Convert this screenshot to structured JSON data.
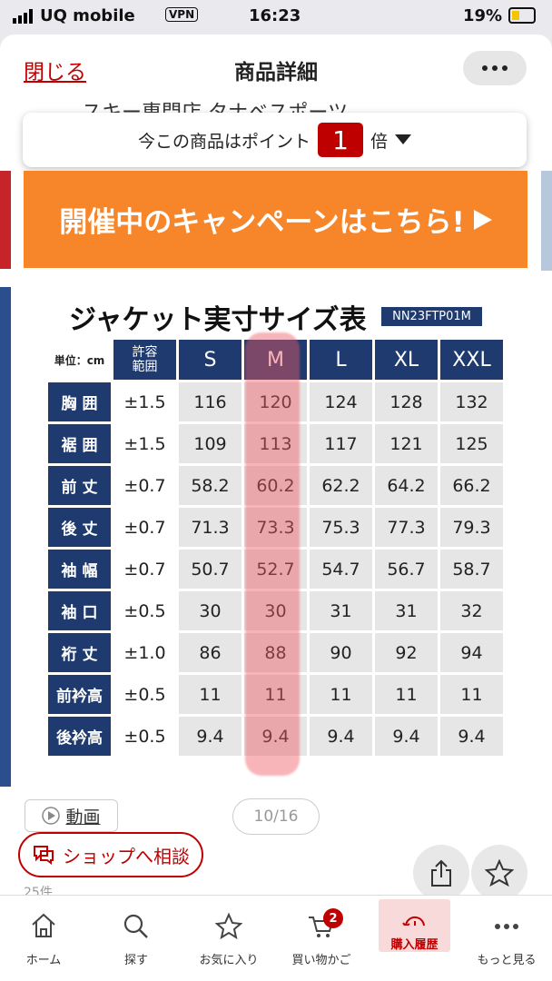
{
  "status_bar": {
    "carrier": "UQ mobile",
    "vpn": "VPN",
    "time": "16:23",
    "battery": "19%"
  },
  "header": {
    "close": "閉じる",
    "title": "商品詳細"
  },
  "shop_name": "スキー専門店 タナベスポーツ",
  "points": {
    "prefix": "今この商品はポイント",
    "value": "1",
    "suffix": "倍"
  },
  "banner": {
    "text": "開催中のキャンペーンはこちら!"
  },
  "size_chart": {
    "title": "ジャケット実寸サイズ表",
    "code": "NN23FTP01M",
    "unit": "単位：cm",
    "tolerance_header": [
      "許容",
      "範囲"
    ],
    "sizes": [
      "S",
      "M",
      "L",
      "XL",
      "XXL"
    ],
    "rows": [
      {
        "label": "胸 囲",
        "tolerance": "±1.5",
        "values": [
          "116",
          "120",
          "124",
          "128",
          "132"
        ]
      },
      {
        "label": "裾 囲",
        "tolerance": "±1.5",
        "values": [
          "109",
          "113",
          "117",
          "121",
          "125"
        ]
      },
      {
        "label": "前 丈",
        "tolerance": "±0.7",
        "values": [
          "58.2",
          "60.2",
          "62.2",
          "64.2",
          "66.2"
        ]
      },
      {
        "label": "後 丈",
        "tolerance": "±0.7",
        "values": [
          "71.3",
          "73.3",
          "75.3",
          "77.3",
          "79.3"
        ]
      },
      {
        "label": "袖 幅",
        "tolerance": "±0.7",
        "values": [
          "50.7",
          "52.7",
          "54.7",
          "56.7",
          "58.7"
        ]
      },
      {
        "label": "袖 口",
        "tolerance": "±0.5",
        "values": [
          "30",
          "30",
          "31",
          "31",
          "32"
        ]
      },
      {
        "label": "裄 丈",
        "tolerance": "±1.0",
        "values": [
          "86",
          "88",
          "90",
          "92",
          "94"
        ]
      },
      {
        "label": "前衿高",
        "tolerance": "±0.5",
        "values": [
          "11",
          "11",
          "11",
          "11",
          "11"
        ]
      },
      {
        "label": "後衿高",
        "tolerance": "±0.5",
        "values": [
          "9.4",
          "9.4",
          "9.4",
          "9.4",
          "9.4"
        ]
      }
    ]
  },
  "media": {
    "video": "動画",
    "pager": "10/16"
  },
  "consult": "ショップへ相談",
  "review_count": "25件",
  "nav": {
    "items": [
      "ホーム",
      "探す",
      "お気に入り",
      "買い物かご",
      "購入履歴",
      "もっと見る"
    ],
    "cart_badge": "2"
  }
}
